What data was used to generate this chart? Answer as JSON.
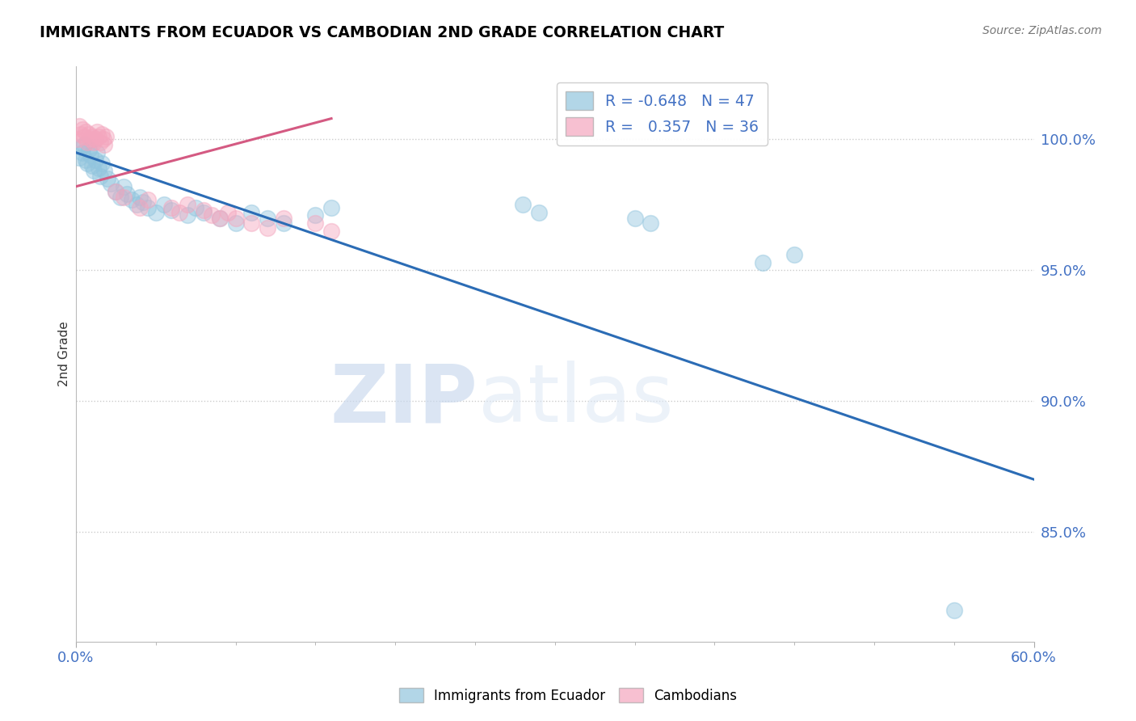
{
  "title": "IMMIGRANTS FROM ECUADOR VS CAMBODIAN 2ND GRADE CORRELATION CHART",
  "source": "Source: ZipAtlas.com",
  "ylabel": "2nd Grade",
  "x_min": 0.0,
  "x_max": 0.6,
  "y_min": 0.808,
  "y_max": 1.028,
  "legend_r_blue": "-0.648",
  "legend_n_blue": "47",
  "legend_r_pink": " 0.357",
  "legend_n_pink": "36",
  "blue_scatter": [
    [
      0.002,
      0.993
    ],
    [
      0.003,
      0.997
    ],
    [
      0.004,
      0.995
    ],
    [
      0.005,
      0.998
    ],
    [
      0.006,
      0.992
    ],
    [
      0.007,
      0.991
    ],
    [
      0.008,
      0.996
    ],
    [
      0.009,
      0.994
    ],
    [
      0.01,
      0.99
    ],
    [
      0.011,
      0.988
    ],
    [
      0.012,
      0.992
    ],
    [
      0.013,
      0.995
    ],
    [
      0.014,
      0.989
    ],
    [
      0.015,
      0.986
    ],
    [
      0.016,
      0.991
    ],
    [
      0.018,
      0.988
    ],
    [
      0.02,
      0.985
    ],
    [
      0.022,
      0.983
    ],
    [
      0.025,
      0.98
    ],
    [
      0.028,
      0.978
    ],
    [
      0.03,
      0.982
    ],
    [
      0.032,
      0.979
    ],
    [
      0.035,
      0.977
    ],
    [
      0.038,
      0.975
    ],
    [
      0.04,
      0.978
    ],
    [
      0.042,
      0.976
    ],
    [
      0.045,
      0.974
    ],
    [
      0.05,
      0.972
    ],
    [
      0.055,
      0.975
    ],
    [
      0.06,
      0.973
    ],
    [
      0.07,
      0.971
    ],
    [
      0.075,
      0.974
    ],
    [
      0.08,
      0.972
    ],
    [
      0.09,
      0.97
    ],
    [
      0.1,
      0.968
    ],
    [
      0.11,
      0.972
    ],
    [
      0.12,
      0.97
    ],
    [
      0.13,
      0.968
    ],
    [
      0.15,
      0.971
    ],
    [
      0.16,
      0.974
    ],
    [
      0.28,
      0.975
    ],
    [
      0.29,
      0.972
    ],
    [
      0.35,
      0.97
    ],
    [
      0.36,
      0.968
    ],
    [
      0.43,
      0.953
    ],
    [
      0.45,
      0.956
    ],
    [
      0.55,
      0.82
    ]
  ],
  "pink_scatter": [
    [
      0.001,
      1.0
    ],
    [
      0.002,
      1.005
    ],
    [
      0.003,
      1.002
    ],
    [
      0.004,
      1.004
    ],
    [
      0.005,
      1.001
    ],
    [
      0.006,
      1.003
    ],
    [
      0.007,
      0.999
    ],
    [
      0.008,
      1.002
    ],
    [
      0.009,
      1.0
    ],
    [
      0.01,
      1.001
    ],
    [
      0.011,
      0.999
    ],
    [
      0.012,
      1.0
    ],
    [
      0.013,
      1.003
    ],
    [
      0.014,
      1.001
    ],
    [
      0.015,
      0.999
    ],
    [
      0.016,
      1.002
    ],
    [
      0.017,
      1.0
    ],
    [
      0.018,
      0.998
    ],
    [
      0.019,
      1.001
    ],
    [
      0.025,
      0.98
    ],
    [
      0.03,
      0.978
    ],
    [
      0.04,
      0.974
    ],
    [
      0.045,
      0.977
    ],
    [
      0.06,
      0.974
    ],
    [
      0.065,
      0.972
    ],
    [
      0.07,
      0.975
    ],
    [
      0.08,
      0.973
    ],
    [
      0.085,
      0.971
    ],
    [
      0.09,
      0.97
    ],
    [
      0.095,
      0.972
    ],
    [
      0.1,
      0.97
    ],
    [
      0.11,
      0.968
    ],
    [
      0.12,
      0.966
    ],
    [
      0.13,
      0.97
    ],
    [
      0.15,
      0.968
    ],
    [
      0.16,
      0.965
    ]
  ],
  "blue_line_x": [
    0.0,
    0.6
  ],
  "blue_line_y": [
    0.995,
    0.87
  ],
  "pink_line_x": [
    0.0,
    0.16
  ],
  "pink_line_y": [
    0.982,
    1.008
  ],
  "blue_color": "#92c5de",
  "pink_color": "#f4a6be",
  "blue_line_color": "#2b6cb5",
  "pink_line_color": "#d45a82",
  "watermark_zip": "ZIP",
  "watermark_atlas": "atlas",
  "grid_color": "#cccccc",
  "tick_label_color": "#4472c4",
  "background_color": "#ffffff",
  "ytick_vals": [
    0.85,
    0.9,
    0.95,
    1.0
  ],
  "ytick_labels": [
    "85.0%",
    "90.0%",
    "95.0%",
    "100.0%"
  ]
}
